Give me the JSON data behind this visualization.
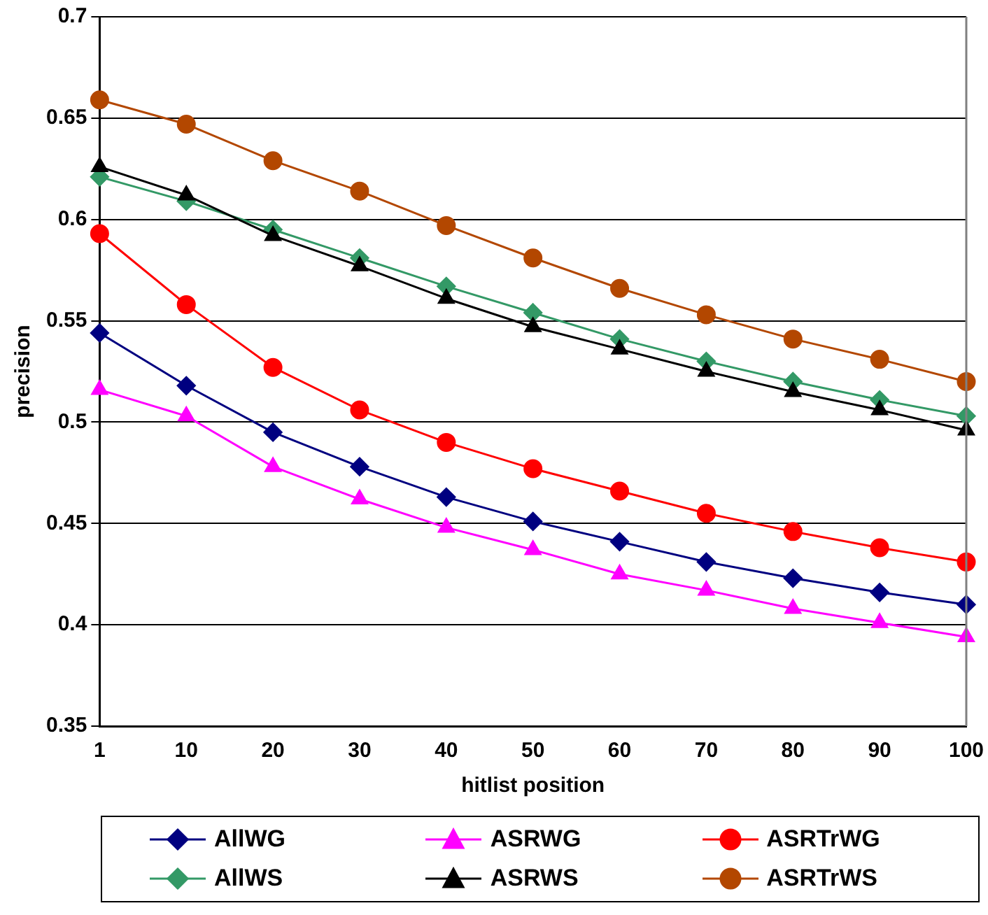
{
  "chart_data": {
    "type": "line",
    "xlabel": "hitlist position",
    "ylabel": "precision",
    "categories": [
      "1",
      "10",
      "20",
      "30",
      "40",
      "50",
      "60",
      "70",
      "80",
      "90",
      "100"
    ],
    "series": [
      {
        "name": "AllWG",
        "color": "#000080",
        "marker": "diamond",
        "values": [
          0.544,
          0.518,
          0.495,
          0.478,
          0.463,
          0.451,
          0.441,
          0.431,
          0.423,
          0.416,
          0.41
        ]
      },
      {
        "name": "ASRWG",
        "color": "#ff00ff",
        "marker": "triangle",
        "values": [
          0.516,
          0.503,
          0.478,
          0.462,
          0.448,
          0.437,
          0.425,
          0.417,
          0.408,
          0.401,
          0.394
        ]
      },
      {
        "name": "ASRTrWG",
        "color": "#ff0000",
        "marker": "circle",
        "values": [
          0.593,
          0.558,
          0.527,
          0.506,
          0.49,
          0.477,
          0.466,
          0.455,
          0.446,
          0.438,
          0.431
        ]
      },
      {
        "name": "AllWS",
        "color": "#339966",
        "marker": "diamond",
        "values": [
          0.621,
          0.609,
          0.595,
          0.581,
          0.567,
          0.554,
          0.541,
          0.53,
          0.52,
          0.511,
          0.503
        ]
      },
      {
        "name": "ASRWS",
        "color": "#000000",
        "marker": "triangle",
        "values": [
          0.626,
          0.612,
          0.592,
          0.577,
          0.561,
          0.547,
          0.536,
          0.525,
          0.515,
          0.506,
          0.496
        ]
      },
      {
        "name": "ASRTrWS",
        "color": "#b34700",
        "marker": "circle",
        "values": [
          0.659,
          0.647,
          0.629,
          0.614,
          0.597,
          0.581,
          0.566,
          0.553,
          0.541,
          0.531,
          0.52
        ]
      }
    ],
    "ylim": [
      0.35,
      0.7
    ],
    "yticks": [
      0.35,
      0.4,
      0.45,
      0.5,
      0.55,
      0.6,
      0.65,
      0.7
    ],
    "grid": "y",
    "legend": "bottom",
    "line_style": "solid"
  }
}
